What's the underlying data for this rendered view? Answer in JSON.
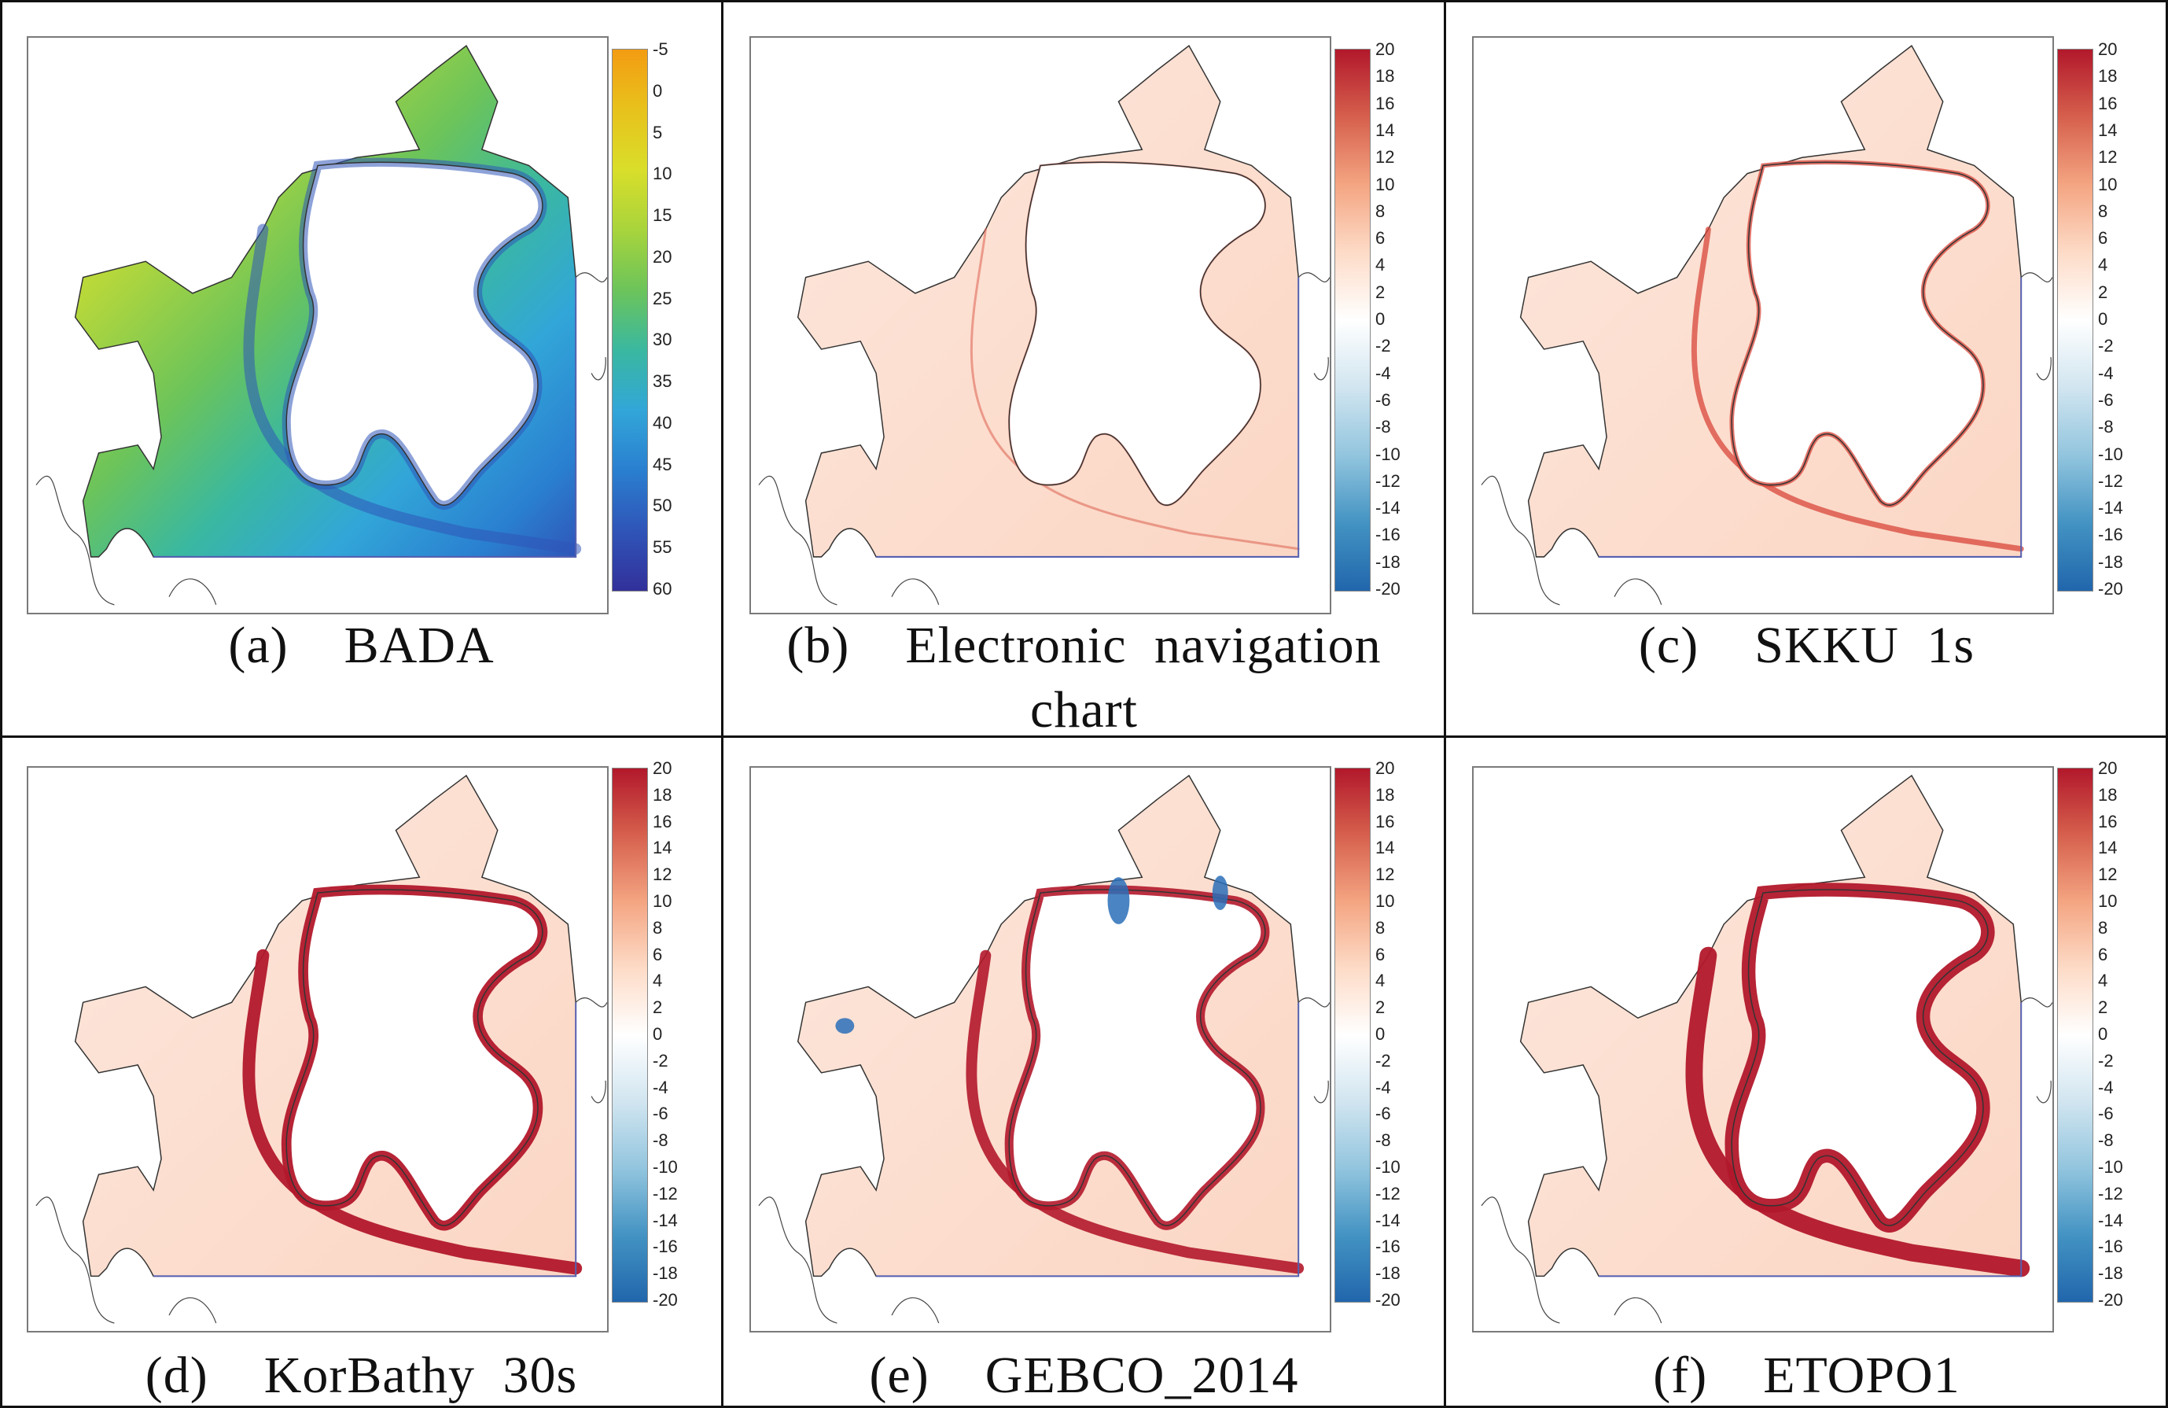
{
  "panels": [
    {
      "label": "(a)",
      "title": "BADA",
      "scale": "depth",
      "ticks": [
        "-5",
        "0",
        "5",
        "10",
        "15",
        "20",
        "25",
        "30",
        "35",
        "40",
        "45",
        "50",
        "55",
        "60"
      ]
    },
    {
      "label": "(b)",
      "title": "Electronic navigation chart",
      "scale": "diff",
      "ticks": [
        "20",
        "18",
        "16",
        "14",
        "12",
        "10",
        "8",
        "6",
        "4",
        "2",
        "0",
        "-2",
        "-4",
        "-6",
        "-8",
        "-10",
        "-12",
        "-14",
        "-16",
        "-18",
        "-20"
      ]
    },
    {
      "label": "(c)",
      "title": "SKKU 1s",
      "scale": "diff",
      "ticks": [
        "20",
        "18",
        "16",
        "14",
        "12",
        "10",
        "8",
        "6",
        "4",
        "2",
        "0",
        "-2",
        "-4",
        "-6",
        "-8",
        "-10",
        "-12",
        "-14",
        "-16",
        "-18",
        "-20"
      ]
    },
    {
      "label": "(d)",
      "title": "KorBathy 30s",
      "scale": "diff",
      "ticks": [
        "20",
        "18",
        "16",
        "14",
        "12",
        "10",
        "8",
        "6",
        "4",
        "2",
        "0",
        "-2",
        "-4",
        "-6",
        "-8",
        "-10",
        "-12",
        "-14",
        "-16",
        "-18",
        "-20"
      ]
    },
    {
      "label": "(e)",
      "title": "GEBCO_2014",
      "scale": "diff",
      "ticks": [
        "20",
        "18",
        "16",
        "14",
        "12",
        "10",
        "8",
        "6",
        "4",
        "2",
        "0",
        "-2",
        "-4",
        "-6",
        "-8",
        "-10",
        "-12",
        "-14",
        "-16",
        "-18",
        "-20"
      ]
    },
    {
      "label": "(f)",
      "title": "ETOPO1",
      "scale": "diff",
      "ticks": [
        "20",
        "18",
        "16",
        "14",
        "12",
        "10",
        "8",
        "6",
        "4",
        "2",
        "0",
        "-2",
        "-4",
        "-6",
        "-8",
        "-10",
        "-12",
        "-14",
        "-16",
        "-18",
        "-20"
      ]
    }
  ],
  "colors": {
    "depth_gradient": [
      "#f39c12",
      "#e8c21c",
      "#d9de2a",
      "#a8d43c",
      "#6cc45a",
      "#3ab8a0",
      "#32a6d8",
      "#2a7fd0",
      "#2f55b8",
      "#32309a"
    ],
    "diff_gradient": [
      "#b2182b",
      "#d6604d",
      "#f4a582",
      "#fddbc7",
      "#ffffff",
      "#d1e5f0",
      "#92c5de",
      "#4393c3",
      "#2166ac"
    ],
    "coast": "#333333",
    "domain_edge": "#5560b0"
  }
}
